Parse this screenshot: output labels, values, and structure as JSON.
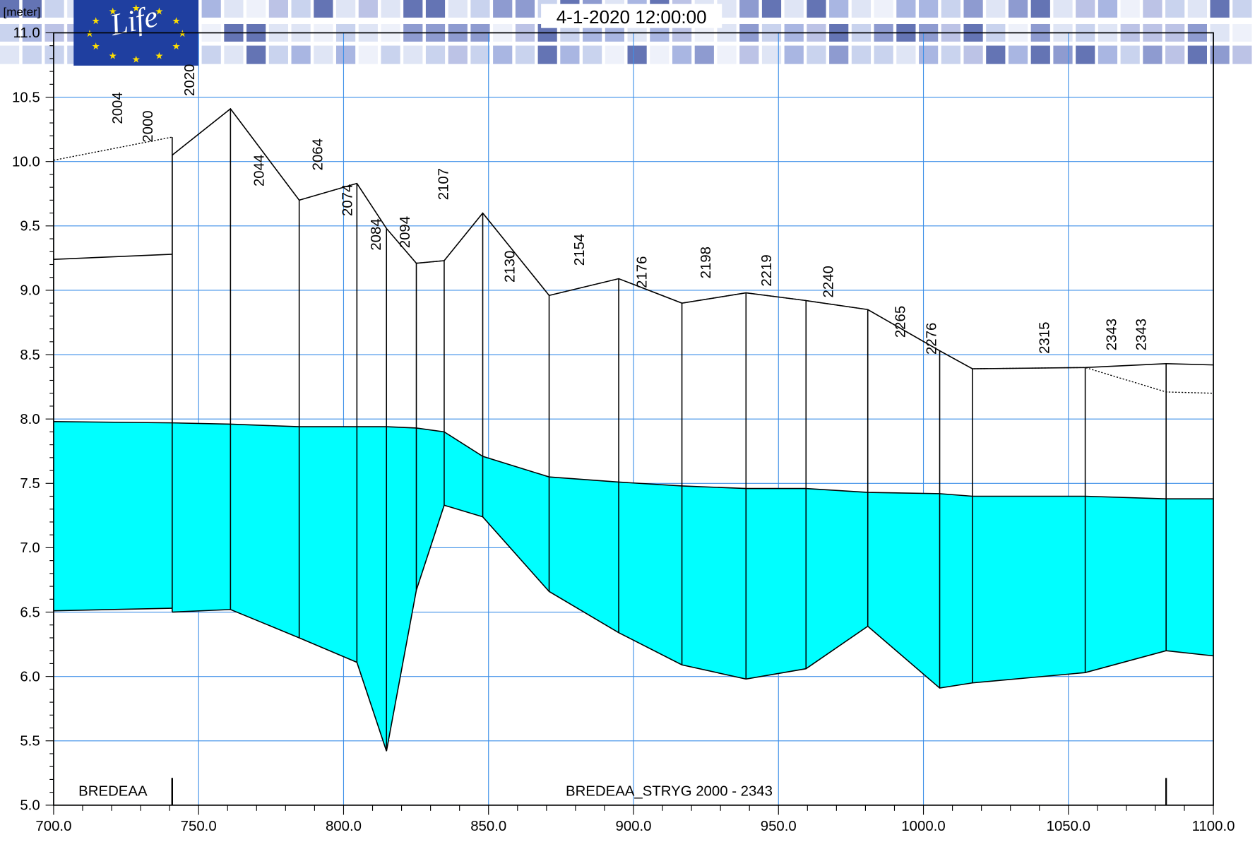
{
  "chart_data": {
    "type": "line",
    "y_unit_label": "[meter]",
    "timestamp": "4-1-2020 12:00:00",
    "logo_text": "Life",
    "xlim": [
      700,
      1100
    ],
    "ylim": [
      5.0,
      11.0
    ],
    "xticks": [
      {
        "value": 700,
        "label": "700.0"
      },
      {
        "value": 750,
        "label": "750.0"
      },
      {
        "value": 800,
        "label": "800.0"
      },
      {
        "value": 850,
        "label": "850.0"
      },
      {
        "value": 900,
        "label": "900.0"
      },
      {
        "value": 950,
        "label": "950.0"
      },
      {
        "value": 1000,
        "label": "1000.0"
      },
      {
        "value": 1050,
        "label": "1050.0"
      },
      {
        "value": 1100,
        "label": "1100.0"
      }
    ],
    "yticks": [
      {
        "value": 5,
        "label": "5.0"
      },
      5.5,
      {
        "value": 6,
        "label": "6.0"
      },
      6.5,
      {
        "value": 7,
        "label": "7.0"
      },
      7.5,
      {
        "value": 8,
        "label": "8.0"
      },
      8.5,
      {
        "value": 9,
        "label": "9.0"
      },
      9.5,
      {
        "value": 10,
        "label": "10.0"
      },
      10.5,
      {
        "value": 11,
        "label": "11.0"
      }
    ],
    "grid": true,
    "grid_color": "#3d8fe8",
    "water_color": "#00ffff",
    "line_color": "#000000",
    "branches": [
      {
        "label": "BREDEAA",
        "extent": [
          700,
          740.9
        ],
        "x": [
          700,
          740.9
        ],
        "bed": [
          6.51,
          6.53
        ],
        "water": [
          7.98,
          7.97
        ],
        "bank_solid": [
          9.24,
          9.28
        ],
        "bank_dotted": [
          10.01,
          10.19
        ]
      },
      {
        "label": "BREDEAA_STRYG  2000 - 2343",
        "extent": [
          740.9,
          1083.7
        ],
        "x": [
          740.9,
          761.0,
          784.7,
          804.6,
          814.8,
          825.1,
          834.7,
          848.0,
          870.9,
          894.9,
          916.7,
          938.8,
          959.5,
          980.8,
          1005.6,
          1016.9,
          1055.8,
          1083.7,
          1100
        ],
        "bed": [
          6.5,
          6.52,
          6.3,
          6.11,
          5.42,
          6.67,
          7.33,
          7.24,
          6.66,
          6.34,
          6.09,
          5.98,
          6.06,
          6.39,
          5.91,
          5.95,
          6.03,
          6.2,
          6.16
        ],
        "water": [
          7.97,
          7.96,
          7.94,
          7.94,
          7.94,
          7.93,
          7.9,
          7.71,
          7.55,
          7.51,
          7.48,
          7.46,
          7.46,
          7.43,
          7.42,
          7.4,
          7.4,
          7.38,
          7.38
        ],
        "bank_solid": [
          10.05,
          10.41,
          9.7,
          9.83,
          9.48,
          9.21,
          9.23,
          9.6,
          8.96,
          9.09,
          8.9,
          8.98,
          8.92,
          8.85,
          8.53,
          8.39,
          8.4,
          8.43,
          8.42
        ],
        "bank_dotted": [
          10.05,
          10.41,
          9.7,
          9.83,
          9.48,
          9.21,
          9.23,
          9.6,
          8.96,
          9.09,
          8.9,
          8.98,
          8.92,
          8.85,
          8.53,
          8.39,
          8.4,
          8.21,
          8.2
        ]
      }
    ],
    "section_labels": [
      "2004",
      "2000",
      "2020",
      "2044",
      "2064",
      "2074",
      "2084",
      "2094",
      "2107",
      "2130",
      "2154",
      "2176",
      "2198",
      "2219",
      "2240",
      "2265",
      "2276",
      "2315",
      "2343",
      "2343"
    ]
  }
}
